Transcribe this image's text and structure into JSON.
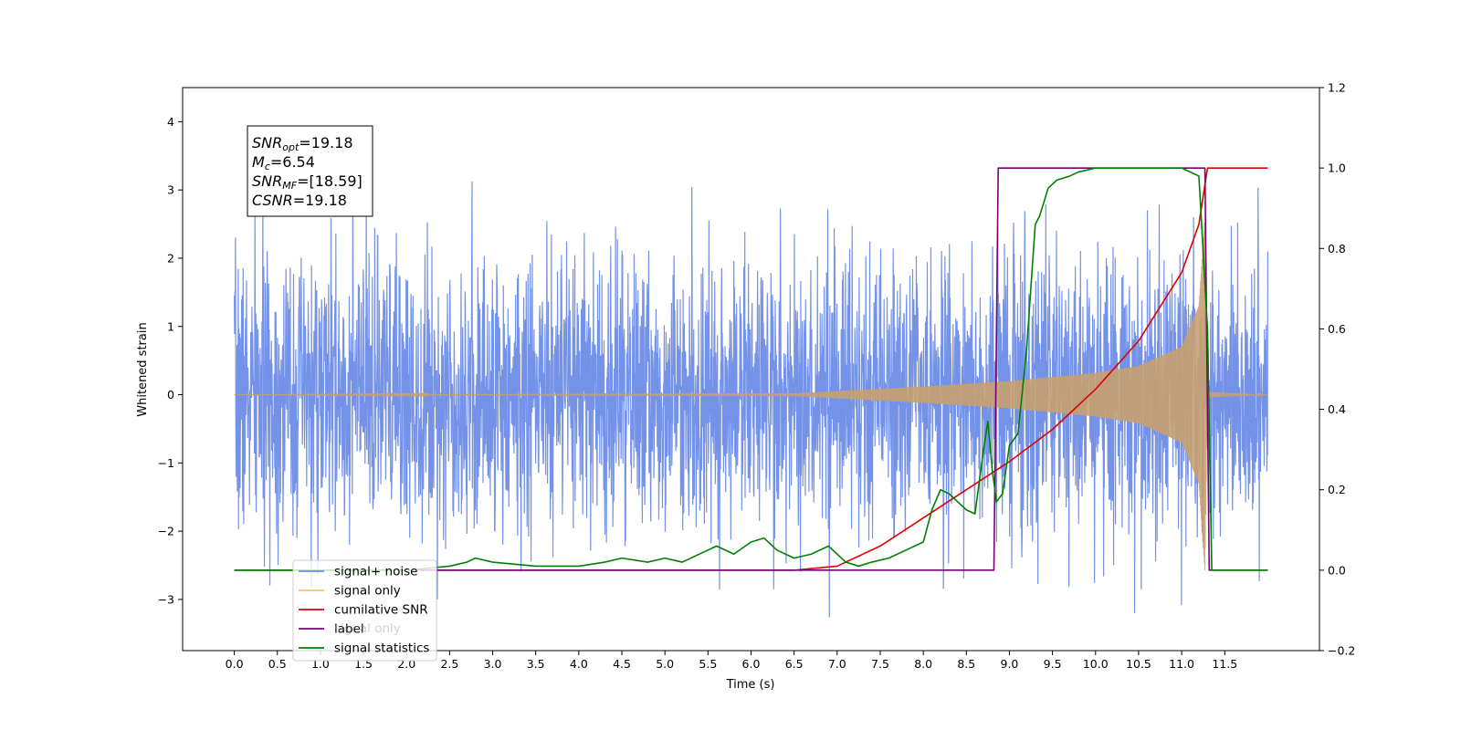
{
  "chart_data": {
    "type": "line",
    "xlabel": "Time (s)",
    "ylabel": "Whitened strain",
    "xlim": [
      -0.6,
      12.6
    ],
    "ylim": [
      -3.75,
      4.5
    ],
    "y2lim": [
      -0.2,
      1.2
    ],
    "x_ticks": [
      "0.0",
      "0.5",
      "1.0",
      "1.5",
      "2.0",
      "2.5",
      "3.0",
      "3.5",
      "4.0",
      "4.5",
      "5.0",
      "5.5",
      "6.0",
      "6.5",
      "7.0",
      "7.5",
      "8.0",
      "8.5",
      "9.0",
      "9.5",
      "10.0",
      "10.5",
      "11.0",
      "11.5"
    ],
    "y_ticks": [
      "−3",
      "−2",
      "−1",
      "0",
      "1",
      "2",
      "3",
      "4"
    ],
    "y2_ticks": [
      "−0.2",
      "0.0",
      "0.2",
      "0.4",
      "0.6",
      "0.8",
      "1.0",
      "1.2"
    ],
    "annotation": [
      {
        "main": "SNR",
        "sub": "opt",
        "rest": "=19.18"
      },
      {
        "main": "M",
        "sub": "c",
        "rest": "=6.54"
      },
      {
        "main": "SNR",
        "sub": "MF",
        "rest": "=[18.59]"
      },
      {
        "main": "CSNR",
        "sub": "",
        "rest": "=19.18"
      }
    ],
    "legend": {
      "placement": "lower-left",
      "entries": [
        {
          "label": "signal+ noise",
          "color": "#6d8ce6"
        },
        {
          "label": "signal only",
          "color": "#ffbf66"
        },
        {
          "label": "cumilative SNR",
          "color": "#e00000"
        },
        {
          "label": "label",
          "color": "#7a007a"
        },
        {
          "label": "signal statistics",
          "color": "#008000"
        }
      ],
      "hidden_label": "signal only"
    },
    "series": [
      {
        "name": "signal+ noise",
        "axis": "left",
        "color": "#6d8ce6",
        "x_range": [
          0.0,
          12.0
        ],
        "envelope": [
          2.7,
          4.1
        ],
        "random_seed": 7
      },
      {
        "name": "signal only",
        "axis": "left",
        "color": "#c8a070",
        "x_range": [
          0.0,
          12.0
        ],
        "chirp_peak_x": 11.27,
        "amplitude_knots": [
          [
            0.0,
            0.0
          ],
          [
            6.5,
            0.02
          ],
          [
            8.0,
            0.12
          ],
          [
            9.0,
            0.2
          ],
          [
            10.0,
            0.32
          ],
          [
            10.5,
            0.42
          ],
          [
            11.0,
            0.7
          ],
          [
            11.2,
            1.3
          ],
          [
            11.27,
            2.6
          ],
          [
            11.3,
            0.04
          ],
          [
            12.0,
            0.0
          ]
        ]
      },
      {
        "name": "cumilative SNR",
        "axis": "right",
        "color": "#e00000",
        "x": [
          0.0,
          6.5,
          7.0,
          7.5,
          8.0,
          8.5,
          9.0,
          9.5,
          10.0,
          10.5,
          11.0,
          11.2,
          11.3,
          12.0
        ],
        "y": [
          0.0,
          0.0,
          0.01,
          0.06,
          0.13,
          0.2,
          0.27,
          0.35,
          0.45,
          0.57,
          0.74,
          0.86,
          1.0,
          1.0
        ]
      },
      {
        "name": "label",
        "axis": "right",
        "color": "#7a007a",
        "x": [
          0.0,
          8.82,
          8.87,
          11.27,
          11.32,
          12.0
        ],
        "y": [
          0.0,
          0.0,
          1.0,
          1.0,
          0.0,
          0.0
        ]
      },
      {
        "name": "signal statistics",
        "axis": "right",
        "color": "#008000",
        "x": [
          0.0,
          0.6,
          1.5,
          2.0,
          2.5,
          2.7,
          2.8,
          3.0,
          3.5,
          4.0,
          4.3,
          4.5,
          4.8,
          5.0,
          5.2,
          5.5,
          5.6,
          5.8,
          6.0,
          6.15,
          6.3,
          6.5,
          6.7,
          6.9,
          7.1,
          7.25,
          7.4,
          7.6,
          7.8,
          8.0,
          8.1,
          8.2,
          8.3,
          8.4,
          8.5,
          8.6,
          8.7,
          8.75,
          8.8,
          8.85,
          8.92,
          9.0,
          9.1,
          9.2,
          9.3,
          9.35,
          9.45,
          9.55,
          9.7,
          9.8,
          10.0,
          11.0,
          11.2,
          11.3,
          11.35,
          12.0
        ],
        "y": [
          0.0,
          0.0,
          0.0,
          0.0,
          0.01,
          0.02,
          0.03,
          0.02,
          0.01,
          0.01,
          0.02,
          0.03,
          0.02,
          0.03,
          0.02,
          0.05,
          0.06,
          0.04,
          0.07,
          0.08,
          0.05,
          0.03,
          0.04,
          0.06,
          0.02,
          0.01,
          0.02,
          0.03,
          0.05,
          0.07,
          0.15,
          0.2,
          0.19,
          0.17,
          0.15,
          0.14,
          0.3,
          0.37,
          0.25,
          0.17,
          0.19,
          0.31,
          0.34,
          0.55,
          0.86,
          0.88,
          0.95,
          0.97,
          0.98,
          0.99,
          1.0,
          1.0,
          0.98,
          0.6,
          0.0,
          0.0
        ]
      }
    ]
  }
}
